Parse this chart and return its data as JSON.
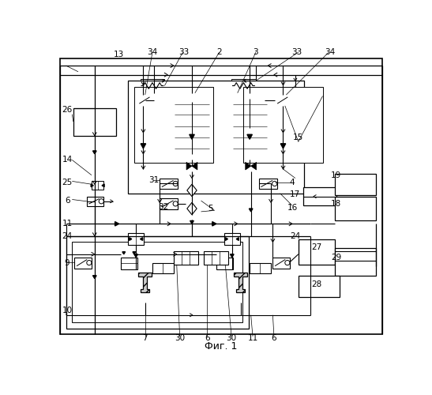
{
  "title": "Фиг. 1",
  "bg_color": "#ffffff",
  "line_color": "#000000",
  "fig_width": 5.47,
  "fig_height": 5.0,
  "dpi": 100
}
